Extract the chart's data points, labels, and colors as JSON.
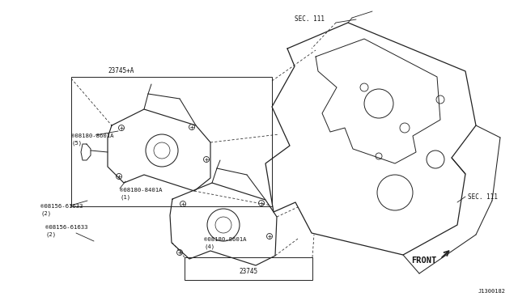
{
  "bg_color": "#ffffff",
  "fig_width": 6.4,
  "fig_height": 3.72,
  "dpi": 100,
  "line_color": "#222222",
  "text_color": "#111111",
  "labels": {
    "sec111_top": "SEC. 111",
    "sec111_bot": "SEC. 111",
    "box_23745A": "23745+A",
    "part_08180_8601A_5": "®08180-8601A\n(5)",
    "part_08180_8401A_1": "®08180-8401A\n(1)",
    "part_08156_61633_2a": "®08156-61633\n(2)",
    "part_08156_61633_2b": "®08156-61633\n(2)",
    "part_08180_8601A_4": "®08180-8601A\n(4)",
    "label_23745": "23745",
    "front": "FRONT",
    "diagram_id": "J1300182"
  },
  "font_size": 5.5,
  "lw_main": 0.85,
  "lw_thin": 0.6
}
